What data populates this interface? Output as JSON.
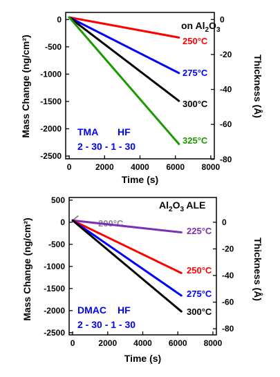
{
  "chart_data": [
    {
      "type": "line",
      "title": "on Al2O3",
      "title_main": "on Al",
      "title_sub": "2",
      "title_mid": "O",
      "title_sub2": "3",
      "xlabel": "Time (s)",
      "ylabel_left": "Mass Change (ng/cm²)",
      "ylabel_right": "Thickness (Å)",
      "xlim": [
        -200,
        8200
      ],
      "ylim_left": [
        -2550,
        130
      ],
      "ylim_right": [
        -79.7,
        4.06
      ],
      "xticks": [
        0,
        2000,
        4000,
        6000,
        8000
      ],
      "yticks_left": [
        0,
        -500,
        -1000,
        -1500,
        -2000,
        -2500
      ],
      "yticks_right": [
        0,
        -20,
        -40,
        -60,
        -80
      ],
      "annotations": [
        "TMA",
        "HF",
        "2 - 30 - 1 - 30"
      ],
      "series": [
        {
          "name": "250°C",
          "color": "#ff0000",
          "x": [
            0,
            6200
          ],
          "y": [
            40,
            -330
          ]
        },
        {
          "name": "275°C",
          "color": "#0000ff",
          "x": [
            0,
            6200
          ],
          "y": [
            40,
            -980
          ]
        },
        {
          "name": "300°C",
          "color": "#000000",
          "x": [
            0,
            6200
          ],
          "y": [
            40,
            -1490
          ]
        },
        {
          "name": "325°C",
          "color": "#1a9900",
          "x": [
            0,
            6200
          ],
          "y": [
            40,
            -2280
          ]
        }
      ],
      "grid": false,
      "legend": "inline labels at line ends"
    },
    {
      "type": "line",
      "title": "Al2O3 ALE",
      "title_main": "Al",
      "title_sub": "2",
      "title_mid": "O",
      "title_sub2": "3",
      "title_tail": " ALE",
      "xlabel": "Time (s)",
      "ylabel_left": "Mass Change (ng/cm²)",
      "ylabel_right": "Thickness (Å)",
      "xlim": [
        -200,
        8200
      ],
      "ylim_left": [
        -2550,
        560
      ],
      "ylim_right": [
        -84.6,
        18.6
      ],
      "xticks": [
        0,
        2000,
        4000,
        6000,
        8000
      ],
      "yticks_left": [
        500,
        0,
        -500,
        -1000,
        -1500,
        -2000,
        -2500
      ],
      "yticks_right": [
        0,
        -20,
        -40,
        -60,
        -80
      ],
      "annotations": [
        "DMAC",
        "HF",
        "2 - 30 - 1 - 30"
      ],
      "series": [
        {
          "name": "200°C",
          "color": "#888888",
          "x": [
            0,
            300
          ],
          "y": [
            40,
            140
          ]
        },
        {
          "name": "225°C",
          "color": "#7b2fb5",
          "x": [
            0,
            6200
          ],
          "y": [
            40,
            -230
          ]
        },
        {
          "name": "250°C",
          "color": "#ff0000",
          "x": [
            0,
            6200
          ],
          "y": [
            40,
            -1150
          ]
        },
        {
          "name": "275°C",
          "color": "#0000ff",
          "x": [
            0,
            6200
          ],
          "y": [
            40,
            -1660
          ]
        },
        {
          "name": "300°C",
          "color": "#000000",
          "x": [
            0,
            6200
          ],
          "y": [
            40,
            -2020
          ]
        }
      ],
      "grid": false,
      "legend": "inline labels at line ends"
    }
  ]
}
